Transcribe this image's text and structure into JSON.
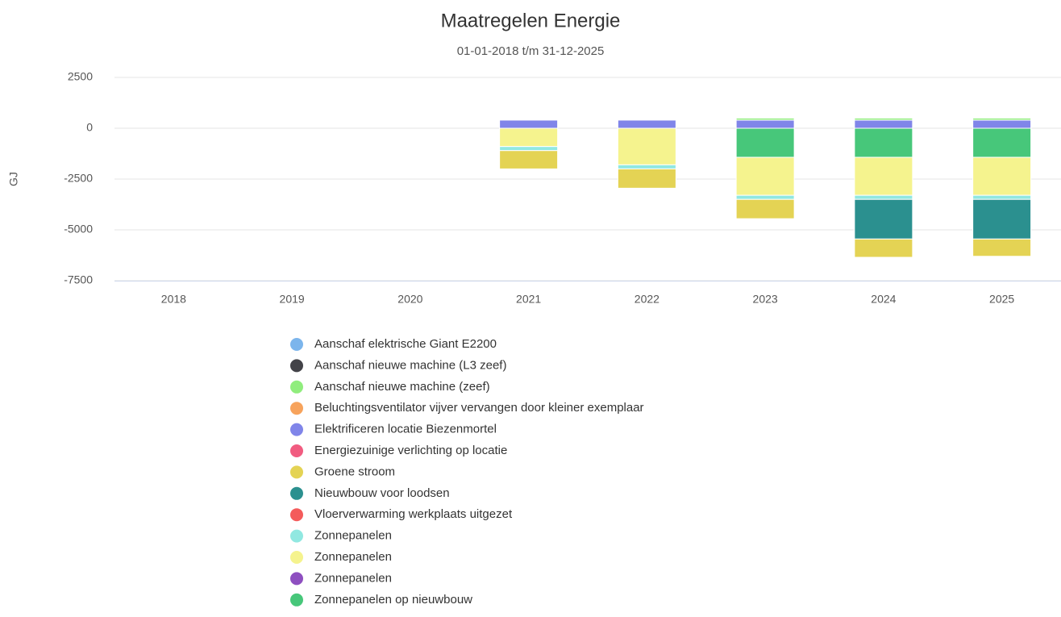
{
  "chart_data": {
    "type": "bar",
    "stacked": true,
    "title": "Maatregelen Energie",
    "subtitle": "01-01-2018 t/m 31-12-2025",
    "y_label": "GJ",
    "categories": [
      "2018",
      "2019",
      "2020",
      "2021",
      "2022",
      "2023",
      "2024",
      "2025"
    ],
    "ylim": [
      -7500,
      2500
    ],
    "yticks": [
      2500,
      0,
      -2500,
      -5000,
      -7500
    ],
    "grid": true,
    "legend": "bottom",
    "series": [
      {
        "name": "Aanschaf elektrische Giant E2200",
        "color": "#7cb5ec",
        "values": [
          null,
          null,
          null,
          null,
          null,
          null,
          null,
          null
        ]
      },
      {
        "name": "Aanschaf nieuwe machine (L3 zeef)",
        "color": "#434348",
        "values": [
          null,
          null,
          null,
          null,
          null,
          null,
          null,
          null
        ]
      },
      {
        "name": "Aanschaf nieuwe machine (zeef)",
        "color": "#90ed7d",
        "values": [
          null,
          null,
          null,
          null,
          null,
          100,
          100,
          100
        ]
      },
      {
        "name": "Beluchtingsventilator vijver vervangen door kleiner exemplaar",
        "color": "#f7a35c",
        "values": [
          null,
          null,
          null,
          null,
          null,
          null,
          null,
          null
        ]
      },
      {
        "name": "Elektrificeren locatie Biezenmortel",
        "color": "#8085e9",
        "values": [
          null,
          null,
          null,
          400,
          400,
          400,
          400,
          400
        ]
      },
      {
        "name": "Energiezuinige verlichting op locatie",
        "color": "#f15c80",
        "values": [
          null,
          null,
          null,
          null,
          null,
          null,
          null,
          null
        ]
      },
      {
        "name": "Groene stroom",
        "color": "#e4d354",
        "values": [
          null,
          null,
          null,
          -900,
          -950,
          -950,
          -900,
          -850
        ]
      },
      {
        "name": "Nieuwbouw voor loodsen",
        "color": "#2b908f",
        "values": [
          null,
          null,
          null,
          null,
          null,
          null,
          -1950,
          -1950
        ]
      },
      {
        "name": "Vloerverwarming werkplaats uitgezet",
        "color": "#f45b5b",
        "values": [
          null,
          null,
          null,
          null,
          null,
          null,
          null,
          null
        ]
      },
      {
        "name": "Zonnepanelen",
        "color": "#91e8e1",
        "values": [
          null,
          null,
          null,
          -200,
          -200,
          -200,
          -200,
          -200
        ]
      },
      {
        "name": "Zonnepanelen",
        "color": "#f5f38e",
        "values": [
          null,
          null,
          null,
          -900,
          -1800,
          -1870,
          -1870,
          -1870
        ]
      },
      {
        "name": "Zonnepanelen",
        "color": "#8e4fc0",
        "values": [
          null,
          null,
          null,
          null,
          null,
          null,
          null,
          null
        ]
      },
      {
        "name": "Zonnepanelen op nieuwbouw",
        "color": "#47c77a",
        "values": [
          null,
          null,
          null,
          null,
          null,
          -1430,
          -1430,
          -1430
        ]
      }
    ]
  }
}
